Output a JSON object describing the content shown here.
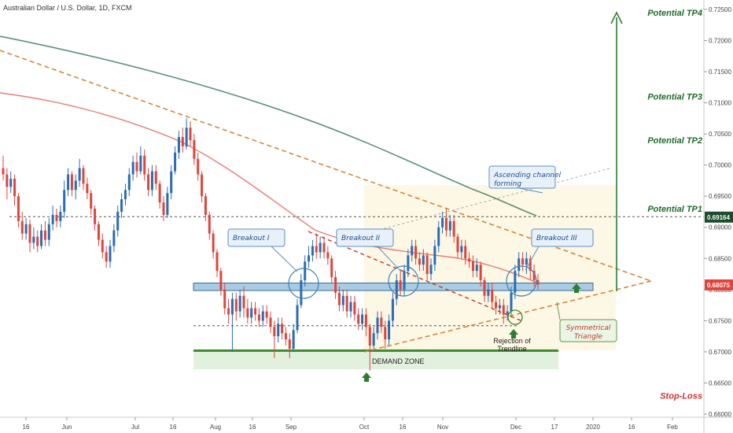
{
  "chart_data": {
    "type": "candlestick",
    "title": "Australian Dollar / U.S. Dollar, 1D, FXCM",
    "ylim": [
      0.66,
      0.7255
    ],
    "y_ticks": [
      "0.72500",
      "0.72000",
      "0.71500",
      "0.71000",
      "0.70500",
      "0.70000",
      "0.69500",
      "0.69000",
      "0.68500",
      "0.68000",
      "0.67500",
      "0.67000",
      "0.66500",
      "0.66000"
    ],
    "x_ticks": [
      "16",
      "Jun",
      "Jul",
      "16",
      "Aug",
      "16",
      "Sep",
      "Oct",
      "16",
      "Nov",
      "Dec",
      "17",
      "2020",
      "16",
      "Feb"
    ],
    "price_badges": [
      {
        "label": "0.69164",
        "value": 0.69164,
        "color": "#1b4d2e"
      },
      {
        "label": "0.68075",
        "value": 0.68075,
        "color": "#e0453c"
      }
    ],
    "targets": [
      {
        "label": "Potential TP4",
        "value": 0.7245
      },
      {
        "label": "Potential TP3",
        "value": 0.711
      },
      {
        "label": "Potential TP2",
        "value": 0.704
      },
      {
        "label": "Potential TP1",
        "value": 0.693
      }
    ],
    "stop_loss": {
      "label": "Stop-Loss",
      "value": 0.663
    },
    "annotations": {
      "breakout1": "Breakout I",
      "breakout2": "Breakout II",
      "breakout3": "Breakout III",
      "channel": "Ascending channel forming",
      "demand": "DEMAND ZONE",
      "rejection": "Rejection of Trendline",
      "triangle": "Symmetrical Triangle"
    },
    "levels": {
      "support_band": [
        0.6801,
        0.6808
      ],
      "dotted_high": 0.6917,
      "dotted_low": 0.6742,
      "demand_zone": [
        0.6672,
        0.6702
      ]
    },
    "candles": [
      [
        0.6995,
        0.6985,
        0.7015,
        0.6975
      ],
      [
        0.6985,
        0.6965,
        0.6995,
        0.6945
      ],
      [
        0.6965,
        0.6978,
        0.699,
        0.6955
      ],
      [
        0.6978,
        0.695,
        0.6985,
        0.6935
      ],
      [
        0.695,
        0.691,
        0.6955,
        0.69
      ],
      [
        0.691,
        0.689,
        0.6925,
        0.688
      ],
      [
        0.689,
        0.6905,
        0.6915,
        0.688
      ],
      [
        0.6905,
        0.6875,
        0.6912,
        0.686
      ],
      [
        0.6875,
        0.6885,
        0.69,
        0.6865
      ],
      [
        0.6885,
        0.687,
        0.6895,
        0.686
      ],
      [
        0.687,
        0.6895,
        0.6905,
        0.6865
      ],
      [
        0.6895,
        0.688,
        0.691,
        0.687
      ],
      [
        0.688,
        0.6905,
        0.6915,
        0.687
      ],
      [
        0.6905,
        0.692,
        0.6935,
        0.6895
      ],
      [
        0.692,
        0.691,
        0.693,
        0.69
      ],
      [
        0.691,
        0.6925,
        0.6935,
        0.69
      ],
      [
        0.6925,
        0.696,
        0.6975,
        0.6915
      ],
      [
        0.696,
        0.6985,
        0.6995,
        0.695
      ],
      [
        0.6985,
        0.696,
        0.699,
        0.695
      ],
      [
        0.696,
        0.6975,
        0.6985,
        0.6945
      ],
      [
        0.6975,
        0.6995,
        0.701,
        0.6965
      ],
      [
        0.6995,
        0.697,
        0.7,
        0.696
      ],
      [
        0.697,
        0.6955,
        0.698,
        0.6945
      ],
      [
        0.6955,
        0.693,
        0.696,
        0.692
      ],
      [
        0.693,
        0.6905,
        0.6935,
        0.6895
      ],
      [
        0.6905,
        0.688,
        0.691,
        0.687
      ],
      [
        0.688,
        0.686,
        0.689,
        0.685
      ],
      [
        0.686,
        0.6845,
        0.687,
        0.6835
      ],
      [
        0.6845,
        0.687,
        0.688,
        0.6835
      ],
      [
        0.687,
        0.6895,
        0.6905,
        0.686
      ],
      [
        0.6895,
        0.6925,
        0.6935,
        0.6885
      ],
      [
        0.6925,
        0.6945,
        0.6955,
        0.6915
      ],
      [
        0.6945,
        0.696,
        0.697,
        0.6935
      ],
      [
        0.696,
        0.6985,
        0.6995,
        0.695
      ],
      [
        0.6985,
        0.7005,
        0.7015,
        0.6975
      ],
      [
        0.7005,
        0.699,
        0.702,
        0.698
      ],
      [
        0.699,
        0.7015,
        0.703,
        0.6985
      ],
      [
        0.7015,
        0.6985,
        0.7025,
        0.6975
      ],
      [
        0.6985,
        0.696,
        0.6995,
        0.695
      ],
      [
        0.696,
        0.699,
        0.7,
        0.695
      ],
      [
        0.699,
        0.697,
        0.7,
        0.696
      ],
      [
        0.697,
        0.694,
        0.6975,
        0.693
      ],
      [
        0.694,
        0.692,
        0.695,
        0.691
      ],
      [
        0.692,
        0.6955,
        0.6965,
        0.6915
      ],
      [
        0.6955,
        0.699,
        0.7,
        0.6945
      ],
      [
        0.699,
        0.702,
        0.703,
        0.6985
      ],
      [
        0.702,
        0.7045,
        0.7055,
        0.701
      ],
      [
        0.7045,
        0.703,
        0.706,
        0.702
      ],
      [
        0.703,
        0.706,
        0.7075,
        0.7025
      ],
      [
        0.706,
        0.704,
        0.707,
        0.703
      ],
      [
        0.704,
        0.701,
        0.705,
        0.7
      ],
      [
        0.701,
        0.6985,
        0.702,
        0.6975
      ],
      [
        0.6985,
        0.695,
        0.699,
        0.694
      ],
      [
        0.695,
        0.692,
        0.6955,
        0.691
      ],
      [
        0.692,
        0.689,
        0.6925,
        0.688
      ],
      [
        0.689,
        0.686,
        0.6895,
        0.685
      ],
      [
        0.686,
        0.683,
        0.6865,
        0.682
      ],
      [
        0.683,
        0.68,
        0.6835,
        0.679
      ],
      [
        0.68,
        0.677,
        0.681,
        0.676
      ],
      [
        0.677,
        0.676,
        0.6785,
        0.6745
      ],
      [
        0.676,
        0.6785,
        0.6795,
        0.67
      ],
      [
        0.6785,
        0.6765,
        0.6795,
        0.675
      ],
      [
        0.6765,
        0.679,
        0.68,
        0.6755
      ],
      [
        0.679,
        0.677,
        0.6805,
        0.6755
      ],
      [
        0.677,
        0.6755,
        0.6785,
        0.6745
      ],
      [
        0.6755,
        0.677,
        0.678,
        0.6745
      ],
      [
        0.677,
        0.676,
        0.678,
        0.675
      ],
      [
        0.676,
        0.675,
        0.677,
        0.674
      ],
      [
        0.675,
        0.6765,
        0.6775,
        0.674
      ],
      [
        0.6765,
        0.6755,
        0.6775,
        0.6745
      ],
      [
        0.6755,
        0.674,
        0.6765,
        0.673
      ],
      [
        0.674,
        0.6725,
        0.675,
        0.669
      ],
      [
        0.6725,
        0.6745,
        0.6755,
        0.6715
      ],
      [
        0.6745,
        0.673,
        0.6755,
        0.672
      ],
      [
        0.673,
        0.672,
        0.674,
        0.671
      ],
      [
        0.672,
        0.6705,
        0.673,
        0.669
      ],
      [
        0.6705,
        0.6735,
        0.6745,
        0.67
      ],
      [
        0.6735,
        0.6775,
        0.6785,
        0.673
      ],
      [
        0.6775,
        0.6815,
        0.6825,
        0.677
      ],
      [
        0.6815,
        0.6845,
        0.6855,
        0.6805
      ],
      [
        0.6845,
        0.6855,
        0.687,
        0.6835
      ],
      [
        0.6855,
        0.687,
        0.688,
        0.6845
      ],
      [
        0.687,
        0.686,
        0.689,
        0.685
      ],
      [
        0.686,
        0.6875,
        0.6885,
        0.685
      ],
      [
        0.6875,
        0.686,
        0.6885,
        0.685
      ],
      [
        0.686,
        0.685,
        0.687,
        0.684
      ],
      [
        0.685,
        0.682,
        0.6855,
        0.681
      ],
      [
        0.682,
        0.6795,
        0.683,
        0.6785
      ],
      [
        0.6795,
        0.6775,
        0.6805,
        0.6765
      ],
      [
        0.6775,
        0.679,
        0.68,
        0.6765
      ],
      [
        0.679,
        0.6765,
        0.68,
        0.6755
      ],
      [
        0.6765,
        0.678,
        0.679,
        0.6755
      ],
      [
        0.678,
        0.676,
        0.679,
        0.675
      ],
      [
        0.676,
        0.6745,
        0.677,
        0.6735
      ],
      [
        0.6745,
        0.676,
        0.677,
        0.6735
      ],
      [
        0.676,
        0.674,
        0.677,
        0.6725
      ],
      [
        0.674,
        0.671,
        0.6745,
        0.667
      ],
      [
        0.671,
        0.673,
        0.674,
        0.67
      ],
      [
        0.673,
        0.6755,
        0.6765,
        0.672
      ],
      [
        0.6755,
        0.674,
        0.6765,
        0.673
      ],
      [
        0.674,
        0.672,
        0.675,
        0.6705
      ],
      [
        0.672,
        0.675,
        0.676,
        0.671
      ],
      [
        0.675,
        0.6785,
        0.6795,
        0.674
      ],
      [
        0.6785,
        0.6815,
        0.6825,
        0.6775
      ],
      [
        0.6815,
        0.68,
        0.683,
        0.679
      ],
      [
        0.68,
        0.683,
        0.684,
        0.679
      ],
      [
        0.683,
        0.6855,
        0.6865,
        0.682
      ],
      [
        0.6855,
        0.687,
        0.688,
        0.6845
      ],
      [
        0.687,
        0.685,
        0.688,
        0.684
      ],
      [
        0.685,
        0.684,
        0.686,
        0.683
      ],
      [
        0.684,
        0.6855,
        0.6865,
        0.683
      ],
      [
        0.6855,
        0.6825,
        0.686,
        0.6815
      ],
      [
        0.6825,
        0.684,
        0.685,
        0.6815
      ],
      [
        0.684,
        0.687,
        0.688,
        0.683
      ],
      [
        0.687,
        0.69,
        0.691,
        0.686
      ],
      [
        0.69,
        0.6915,
        0.6925,
        0.689
      ],
      [
        0.6915,
        0.6895,
        0.693,
        0.6885
      ],
      [
        0.6895,
        0.691,
        0.692,
        0.6885
      ],
      [
        0.691,
        0.6885,
        0.692,
        0.6875
      ],
      [
        0.6885,
        0.686,
        0.689,
        0.685
      ],
      [
        0.686,
        0.687,
        0.688,
        0.685
      ],
      [
        0.687,
        0.685,
        0.688,
        0.684
      ],
      [
        0.685,
        0.6845,
        0.686,
        0.6835
      ],
      [
        0.6845,
        0.683,
        0.6855,
        0.682
      ],
      [
        0.683,
        0.684,
        0.685,
        0.682
      ],
      [
        0.684,
        0.6815,
        0.6845,
        0.6805
      ],
      [
        0.6815,
        0.679,
        0.682,
        0.678
      ],
      [
        0.679,
        0.68,
        0.681,
        0.678
      ],
      [
        0.68,
        0.678,
        0.681,
        0.677
      ],
      [
        0.678,
        0.677,
        0.679,
        0.676
      ],
      [
        0.677,
        0.6775,
        0.6785,
        0.676
      ],
      [
        0.6775,
        0.676,
        0.6785,
        0.6745
      ],
      [
        0.676,
        0.6765,
        0.6775,
        0.675
      ],
      [
        0.6765,
        0.6795,
        0.6805,
        0.6755
      ],
      [
        0.6795,
        0.683,
        0.684,
        0.6785
      ],
      [
        0.683,
        0.685,
        0.686,
        0.682
      ],
      [
        0.685,
        0.684,
        0.686,
        0.683
      ],
      [
        0.684,
        0.685,
        0.686,
        0.6825
      ],
      [
        0.685,
        0.683,
        0.6855,
        0.6815
      ],
      [
        0.683,
        0.6815,
        0.684,
        0.6805
      ],
      [
        0.6815,
        0.6808,
        0.6825,
        0.68
      ]
    ]
  }
}
